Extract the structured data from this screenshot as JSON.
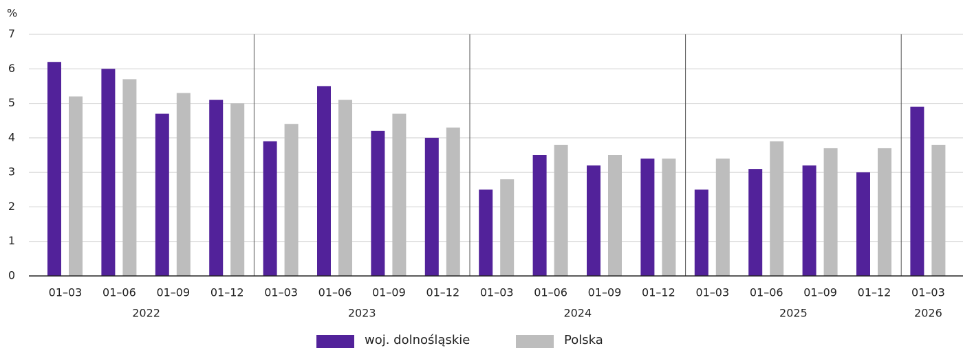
{
  "chart_data": {
    "type": "bar",
    "y_unit": "%",
    "groups": [
      {
        "label": "2022",
        "categories": [
          "01–03",
          "01–06",
          "01–09",
          "01–12"
        ]
      },
      {
        "label": "2023",
        "categories": [
          "01–03",
          "01–06",
          "01–09",
          "01–12"
        ]
      },
      {
        "label": "2024",
        "categories": [
          "01–03",
          "01–06",
          "01–09",
          "01–12"
        ]
      },
      {
        "label": "2025",
        "categories": [
          "01–03",
          "01–06",
          "01–09",
          "01–12"
        ]
      },
      {
        "label": "2026",
        "categories": [
          "01–03"
        ]
      }
    ],
    "series": [
      {
        "name": "woj. dolnośląskie",
        "color": "#52229a",
        "values": [
          6.2,
          6.0,
          4.7,
          5.1,
          3.9,
          5.5,
          4.2,
          4.0,
          2.5,
          3.5,
          3.2,
          3.4,
          2.5,
          3.1,
          3.2,
          3.0,
          4.9
        ]
      },
      {
        "name": "Polska",
        "color": "#bdbdbd",
        "values": [
          5.2,
          5.7,
          5.3,
          5.0,
          4.4,
          5.1,
          4.7,
          4.3,
          2.8,
          3.8,
          3.5,
          3.4,
          3.4,
          3.9,
          3.7,
          3.7,
          3.8
        ]
      }
    ],
    "ylim": [
      0,
      7
    ],
    "yticks": [
      0,
      1,
      2,
      3,
      4,
      5,
      6,
      7
    ],
    "grid": true,
    "legend": "bottom"
  }
}
